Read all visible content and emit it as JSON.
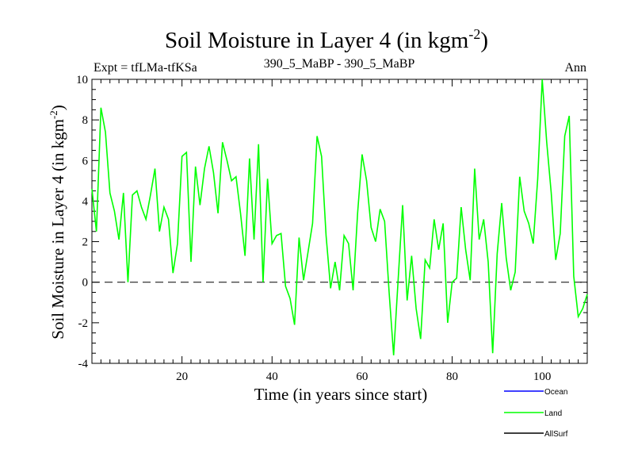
{
  "chart_data": {
    "type": "line",
    "title": "Soil Moisture in Layer 4 (in kgm",
    "title_superscript": "-2",
    "title_suffix": ")",
    "subtitle_left": "Expt = tfLMa-tfKSa",
    "subtitle_center": "390_5_MaBP - 390_5_MaBP",
    "subtitle_right": "Ann",
    "xlabel": "Time (in years since start)",
    "ylabel": "Soil Moisture in Layer 4 (in kgm",
    "ylabel_superscript": "-2",
    "ylabel_suffix": ")",
    "xlim": [
      0,
      110
    ],
    "ylim": [
      -4,
      10
    ],
    "xticks": [
      20,
      40,
      60,
      80,
      100
    ],
    "xtick_labels": [
      "20",
      "40",
      "60",
      "80",
      "100"
    ],
    "yticks": [
      -4,
      -2,
      0,
      2,
      4,
      6,
      8,
      10
    ],
    "ytick_labels": [
      "-4",
      "-2",
      "0",
      "2",
      "4",
      "6",
      "8",
      "10"
    ],
    "reference_line": 0,
    "legend_position": "bottom-right",
    "series": [
      {
        "name": "Ocean",
        "color": "#0000ff",
        "values": []
      },
      {
        "name": "Land",
        "color": "#00ff00",
        "x": [
          0,
          1,
          2,
          3,
          4,
          5,
          6,
          7,
          8,
          9,
          10,
          11,
          12,
          13,
          14,
          15,
          16,
          17,
          18,
          19,
          20,
          21,
          22,
          23,
          24,
          25,
          26,
          27,
          28,
          29,
          30,
          31,
          32,
          33,
          34,
          35,
          36,
          37,
          38,
          39,
          40,
          41,
          42,
          43,
          44,
          45,
          46,
          47,
          48,
          49,
          50,
          51,
          52,
          53,
          54,
          55,
          56,
          57,
          58,
          59,
          60,
          61,
          62,
          63,
          64,
          65,
          66,
          67,
          68,
          69,
          70,
          71,
          72,
          73,
          74,
          75,
          76,
          77,
          78,
          79,
          80,
          81,
          82,
          83,
          84,
          85,
          86,
          87,
          88,
          89,
          90,
          91,
          92,
          93,
          94,
          95,
          96,
          97,
          98,
          99,
          100,
          101,
          102,
          103,
          104,
          105,
          106,
          107,
          108,
          109,
          110
        ],
        "values": [
          4.6,
          2.5,
          8.6,
          7.4,
          4.4,
          3.5,
          2.1,
          4.4,
          0.0,
          4.3,
          4.5,
          3.7,
          3.1,
          4.3,
          5.6,
          2.5,
          3.7,
          3.1,
          0.45,
          1.9,
          6.2,
          6.4,
          1.0,
          5.7,
          3.8,
          5.6,
          6.7,
          5.4,
          3.4,
          6.9,
          6.0,
          5.0,
          5.2,
          3.4,
          1.3,
          6.1,
          2.1,
          6.8,
          0.0,
          5.1,
          1.9,
          2.3,
          2.4,
          -0.2,
          -0.8,
          -2.1,
          2.2,
          0.1,
          1.5,
          2.9,
          7.2,
          6.2,
          2.3,
          -0.3,
          1.0,
          -0.4,
          2.3,
          1.9,
          -0.4,
          3.4,
          6.3,
          5.0,
          2.7,
          2.0,
          3.6,
          3.0,
          -0.5,
          -3.6,
          0.1,
          3.8,
          -0.9,
          1.3,
          -1.3,
          -2.8,
          1.1,
          0.7,
          3.1,
          1.6,
          2.9,
          -2.0,
          0.0,
          0.2,
          3.7,
          1.6,
          0.1,
          5.6,
          2.1,
          3.1,
          1.0,
          -3.5,
          1.4,
          3.9,
          1.2,
          -0.4,
          0.5,
          5.2,
          3.5,
          2.9,
          1.9,
          5.1,
          10.0,
          6.9,
          4.4,
          1.1,
          2.4,
          7.2,
          8.2,
          0.3,
          -1.7,
          -1.3,
          -0.6
        ]
      },
      {
        "name": "AllSurf",
        "color": "#000000",
        "values": []
      }
    ]
  }
}
